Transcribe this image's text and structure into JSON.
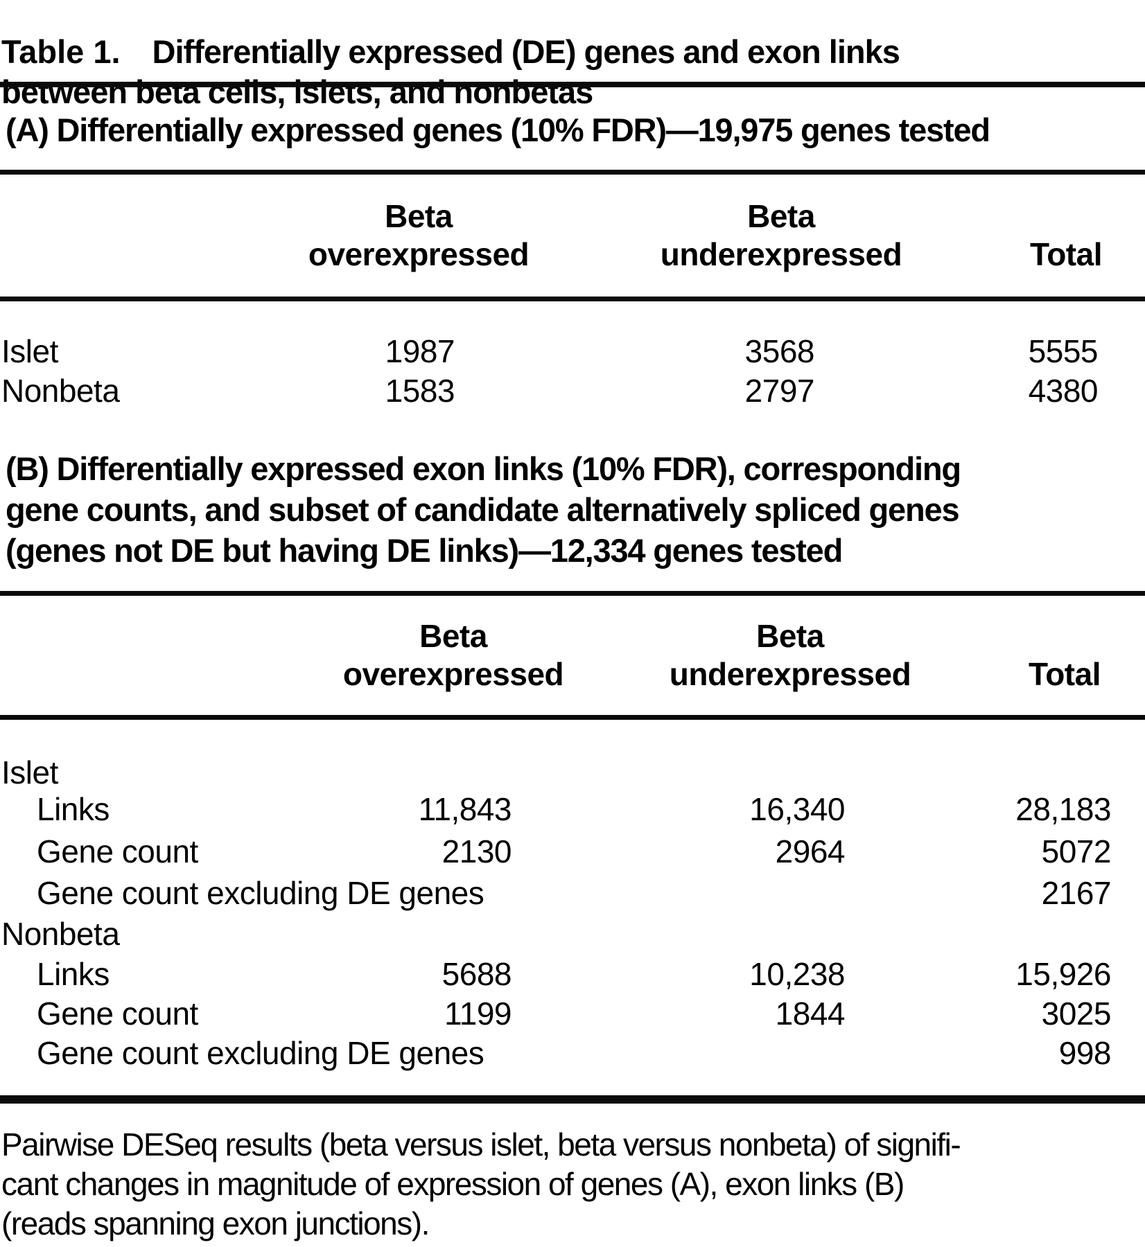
{
  "title": {
    "label": "Table 1.",
    "text": "Differentially expressed (DE) genes and exon links\nbetween beta cells, islets, and nonbetas"
  },
  "section_a": {
    "heading": "(A) Differentially expressed genes (10% FDR)—19,975 genes tested",
    "columns": [
      "Beta\noverexpressed",
      "Beta\nunderexpressed",
      "Total"
    ],
    "rows": [
      {
        "label": "Islet",
        "over": "1987",
        "under": "3568",
        "total": "5555"
      },
      {
        "label": "Nonbeta",
        "over": "1583",
        "under": "2797",
        "total": "4380"
      }
    ]
  },
  "section_b": {
    "heading": "(B) Differentially expressed exon links (10% FDR), corresponding\ngene counts, and subset of candidate alternatively spliced genes\n(genes not DE but having DE links)—12,334 genes tested",
    "columns": [
      "Beta\noverexpressed",
      "Beta\nunderexpressed",
      "Total"
    ],
    "rows": [
      {
        "label": "Islet"
      },
      {
        "label": "Links",
        "over": "11,843",
        "under": "16,340",
        "total": "28,183"
      },
      {
        "label": "Gene count",
        "over": "2130",
        "under": "2964",
        "total": "5072"
      },
      {
        "label": "Gene count excluding DE genes",
        "total": "2167"
      },
      {
        "label": "Nonbeta"
      },
      {
        "label": "Links",
        "over": "5688",
        "under": "10,238",
        "total": "15,926"
      },
      {
        "label": "Gene count",
        "over": "1199",
        "under": "1844",
        "total": "3025"
      },
      {
        "label": "Gene count excluding DE genes",
        "total": "998"
      }
    ]
  },
  "footnote": "Pairwise DESeq results (beta versus islet, beta versus nonbeta) of signifi-\ncant changes in magnitude of expression of genes (A), exon links (B)\n(reads spanning exon junctions)."
}
